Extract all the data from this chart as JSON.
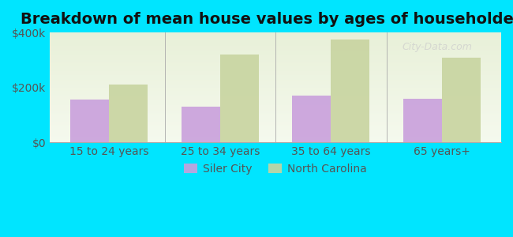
{
  "title": "Breakdown of mean house values by ages of householders",
  "categories": [
    "15 to 24 years",
    "25 to 34 years",
    "35 to 64 years",
    "65 years+"
  ],
  "siler_city_values": [
    155000,
    130000,
    170000,
    158000
  ],
  "north_carolina_values": [
    210000,
    320000,
    375000,
    308000
  ],
  "siler_city_color": "#c9a0dc",
  "north_carolina_color": "#c8d4a0",
  "background_color": "#00e5ff",
  "plot_bg_gradient_top": "#e8f0d8",
  "plot_bg_gradient_bottom": "#f5f9ee",
  "ylim": [
    0,
    400000
  ],
  "yticks": [
    0,
    200000,
    400000
  ],
  "ytick_labels": [
    "$0",
    "$200k",
    "$400k"
  ],
  "legend_labels": [
    "Siler City",
    "North Carolina"
  ],
  "title_fontsize": 14,
  "tick_fontsize": 10,
  "legend_fontsize": 10,
  "bar_width": 0.35
}
